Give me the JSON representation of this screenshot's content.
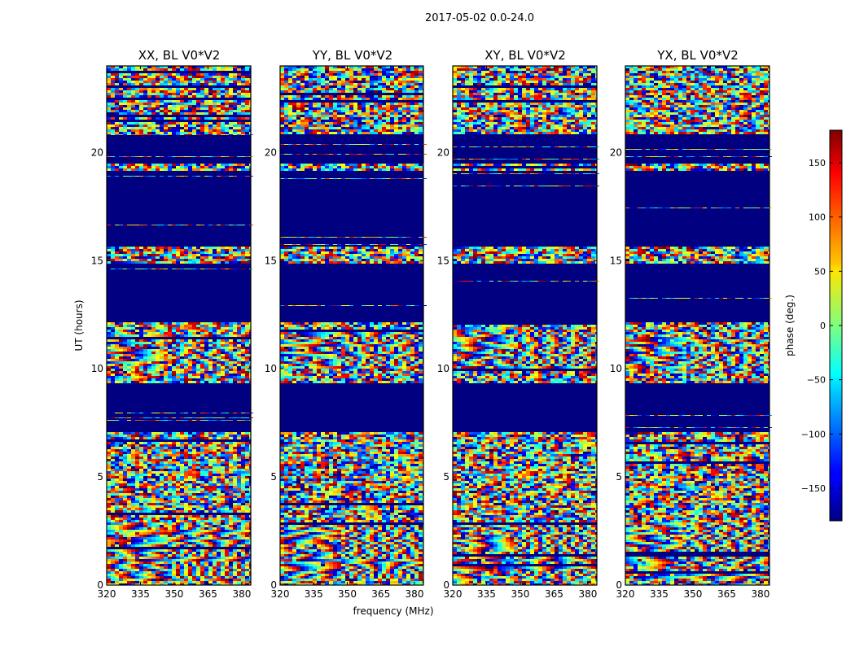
{
  "chart_data": {
    "type": "heatmap",
    "suptitle": "2017-05-02 0.0-24.0",
    "xlabel": "frequency (MHz)",
    "ylabel": "UT (hours)",
    "xlim": [
      320,
      384
    ],
    "ylim": [
      0,
      24
    ],
    "xticks": [
      320,
      335,
      350,
      365,
      380
    ],
    "yticks": [
      0,
      5,
      10,
      15,
      20
    ],
    "colorbar": {
      "label": "phase (deg.)",
      "range": [
        -180,
        180
      ],
      "ticks": [
        -150,
        -100,
        -50,
        0,
        50,
        100,
        150
      ],
      "tick_labels": [
        "−150",
        "−100",
        "−50",
        "0",
        "50",
        "100",
        "150"
      ],
      "colormap": "jet"
    },
    "panels": [
      {
        "title": "XX, BL V0*V2"
      },
      {
        "title": "YY, BL V0*V2"
      },
      {
        "title": "XY, BL V0*V2"
      },
      {
        "title": "YX, BL V0*V2"
      }
    ],
    "flagged_value_deg": -180,
    "flagged_intervals_ut": [
      [
        7.1,
        9.3
      ],
      [
        12.2,
        14.9
      ],
      [
        15.6,
        19.2
      ],
      [
        19.5,
        20.8
      ]
    ],
    "fringe_intervals_ut": [
      [
        10.0,
        11.7
      ],
      [
        0.3,
        2.9
      ]
    ]
  }
}
